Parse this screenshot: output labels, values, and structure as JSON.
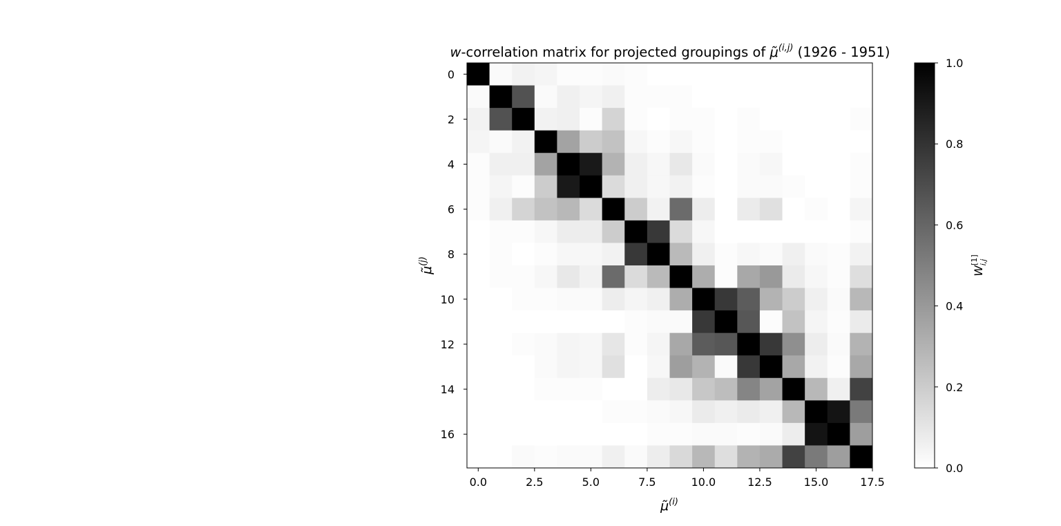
{
  "chart_data": {
    "type": "heatmap",
    "title": {
      "prefix_italic": "w",
      "before_symbol": "-correlation matrix for projected groupings of ",
      "symbol": "μ̃",
      "symbol_superscript": "(i,j)",
      "after_symbol": " (1926 - 1951)"
    },
    "xlabel": {
      "symbol": "μ̃",
      "superscript": "(i)"
    },
    "ylabel": {
      "symbol": "μ̃",
      "superscript": "(j)"
    },
    "colorbar_label": {
      "symbol": "W",
      "superscript": "[1]",
      "subscript": "i,j"
    },
    "colormap": "gray_r",
    "color_low": "#ffffff",
    "color_high": "#000000",
    "xlim": [
      -0.5,
      17.5
    ],
    "ylim": [
      17.5,
      -0.5
    ],
    "vlim": [
      0.0,
      1.0
    ],
    "x_ticks": [
      "0.0",
      "2.5",
      "5.0",
      "7.5",
      "10.0",
      "12.5",
      "15.0",
      "17.5"
    ],
    "y_ticks": [
      "0",
      "2",
      "4",
      "6",
      "8",
      "10",
      "12",
      "14",
      "16"
    ],
    "colorbar_ticks": [
      "0.0",
      "0.2",
      "0.4",
      "0.6",
      "0.8",
      "1.0"
    ],
    "matrix": [
      [
        1.0,
        0.02,
        0.05,
        0.04,
        0.01,
        0.01,
        0.02,
        0.01,
        0.0,
        0.0,
        0.0,
        0.0,
        0.0,
        0.0,
        0.0,
        0.0,
        0.0,
        0.0
      ],
      [
        0.02,
        1.0,
        0.68,
        0.02,
        0.06,
        0.04,
        0.06,
        0.01,
        0.01,
        0.01,
        0.0,
        0.0,
        0.0,
        0.0,
        0.0,
        0.0,
        0.0,
        0.0
      ],
      [
        0.05,
        0.68,
        1.0,
        0.05,
        0.06,
        0.01,
        0.17,
        0.01,
        0.0,
        0.01,
        0.01,
        0.0,
        0.01,
        0.0,
        0.0,
        0.0,
        0.0,
        0.01
      ],
      [
        0.04,
        0.02,
        0.05,
        1.0,
        0.36,
        0.2,
        0.24,
        0.03,
        0.01,
        0.03,
        0.01,
        0.0,
        0.01,
        0.01,
        0.0,
        0.0,
        0.0,
        0.0
      ],
      [
        0.01,
        0.06,
        0.06,
        0.36,
        1.0,
        0.9,
        0.3,
        0.06,
        0.03,
        0.09,
        0.02,
        0.0,
        0.02,
        0.03,
        0.0,
        0.0,
        0.0,
        0.01
      ],
      [
        0.01,
        0.04,
        0.01,
        0.2,
        0.9,
        1.0,
        0.14,
        0.06,
        0.03,
        0.05,
        0.01,
        0.0,
        0.02,
        0.02,
        0.01,
        0.0,
        0.0,
        0.01
      ],
      [
        0.01,
        0.06,
        0.17,
        0.24,
        0.28,
        0.14,
        1.0,
        0.2,
        0.05,
        0.58,
        0.07,
        0.0,
        0.08,
        0.12,
        0.0,
        0.01,
        0.0,
        0.04
      ],
      [
        0.0,
        0.01,
        0.01,
        0.03,
        0.07,
        0.07,
        0.2,
        1.0,
        0.78,
        0.14,
        0.03,
        0.0,
        0.0,
        0.0,
        0.0,
        0.0,
        0.0,
        0.01
      ],
      [
        0.0,
        0.01,
        0.0,
        0.01,
        0.03,
        0.03,
        0.05,
        0.78,
        1.0,
        0.27,
        0.06,
        0.01,
        0.03,
        0.02,
        0.06,
        0.02,
        0.01,
        0.05
      ],
      [
        0.0,
        0.01,
        0.01,
        0.03,
        0.09,
        0.05,
        0.58,
        0.14,
        0.27,
        1.0,
        0.32,
        0.01,
        0.34,
        0.4,
        0.08,
        0.03,
        0.01,
        0.13
      ],
      [
        0.0,
        0.0,
        0.01,
        0.01,
        0.02,
        0.02,
        0.07,
        0.04,
        0.06,
        0.32,
        1.0,
        0.78,
        0.64,
        0.3,
        0.2,
        0.06,
        0.02,
        0.28
      ],
      [
        0.0,
        0.0,
        0.0,
        0.0,
        0.0,
        0.0,
        0.0,
        0.01,
        0.02,
        0.02,
        0.78,
        1.0,
        0.66,
        0.01,
        0.24,
        0.04,
        0.01,
        0.08
      ],
      [
        0.0,
        0.0,
        0.01,
        0.02,
        0.04,
        0.03,
        0.1,
        0.01,
        0.04,
        0.34,
        0.64,
        0.66,
        1.0,
        0.78,
        0.44,
        0.07,
        0.02,
        0.3
      ],
      [
        0.0,
        0.0,
        0.0,
        0.02,
        0.04,
        0.03,
        0.12,
        0.0,
        0.03,
        0.38,
        0.3,
        0.02,
        0.78,
        1.0,
        0.34,
        0.05,
        0.01,
        0.34
      ],
      [
        0.0,
        0.0,
        0.0,
        0.01,
        0.01,
        0.01,
        0.0,
        0.0,
        0.07,
        0.09,
        0.22,
        0.26,
        0.48,
        0.36,
        1.0,
        0.28,
        0.06,
        0.74
      ],
      [
        0.0,
        0.0,
        0.0,
        0.0,
        0.0,
        0.0,
        0.01,
        0.01,
        0.02,
        0.03,
        0.08,
        0.06,
        0.08,
        0.06,
        0.28,
        1.0,
        0.92,
        0.52
      ],
      [
        0.0,
        0.0,
        0.0,
        0.0,
        0.0,
        0.0,
        0.0,
        0.0,
        0.01,
        0.01,
        0.02,
        0.02,
        0.01,
        0.02,
        0.07,
        0.92,
        1.0,
        0.38
      ],
      [
        0.0,
        0.0,
        0.02,
        0.01,
        0.02,
        0.02,
        0.06,
        0.02,
        0.07,
        0.15,
        0.28,
        0.13,
        0.3,
        0.33,
        0.74,
        0.52,
        0.38,
        1.0
      ]
    ]
  }
}
